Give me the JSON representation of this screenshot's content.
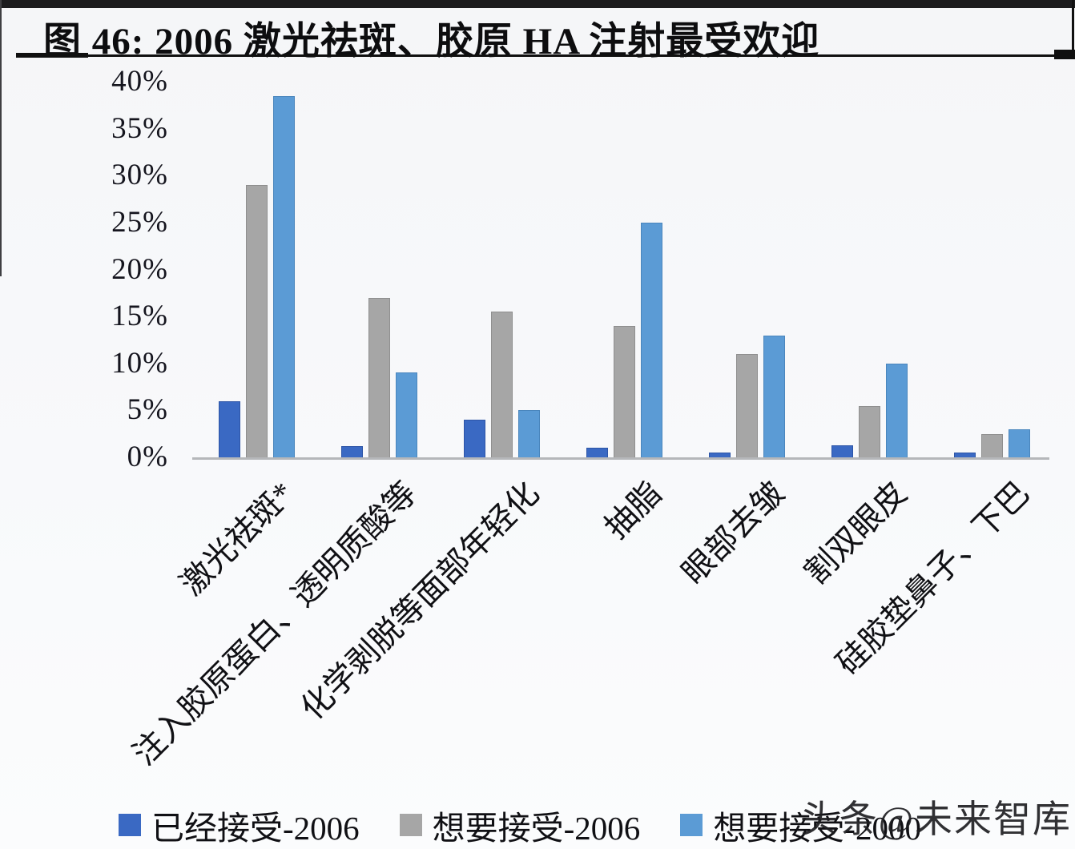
{
  "header": {
    "title": "图 46: 2006 激光祛斑、胶原 HA 注射最受欢迎"
  },
  "watermark": {
    "text": "头条@未来智库"
  },
  "colors": {
    "accepted_2006_blue": "#3a69c3",
    "want_2006_gray": "#a6a6a6",
    "want_2000_light_blue": "#5b9bd5",
    "axis_line": "#b5b7ba",
    "header_bar": "#1c1c1e"
  },
  "chart_data": {
    "type": "bar",
    "title": "图 46: 2006 激光祛斑、胶原 HA 注射最受欢迎",
    "categories": [
      "激光祛斑*",
      "注入胶原蛋白、透明质酸等",
      "化学剥脱等面部年轻化",
      "抽脂",
      "眼部去皱",
      "割双眼皮",
      "硅胶垫鼻子、下巴"
    ],
    "series": [
      {
        "name": "已经接受-2006",
        "color": "#3a69c3",
        "border": "#2d55a6",
        "values": [
          6,
          1.2,
          4,
          1,
          0.5,
          1.3,
          0.5
        ]
      },
      {
        "name": "想要接受-2006",
        "color": "#a6a6a6",
        "border": "#8f8f8f",
        "values": [
          29,
          17,
          15.5,
          14,
          11,
          5.5,
          2.5
        ]
      },
      {
        "name": "想要接受-2000",
        "color": "#5b9bd5",
        "border": "#4a86bd",
        "values": [
          38.5,
          9,
          5,
          25,
          13,
          10,
          3
        ]
      }
    ],
    "xlabel": "",
    "ylabel": "",
    "ylim": [
      0,
      40
    ],
    "ytick_step": 5,
    "ytick_labels": [
      "0%",
      "5%",
      "10%",
      "15%",
      "20%",
      "25%",
      "30%",
      "35%",
      "40%"
    ],
    "grid": false,
    "legend_position": "bottom",
    "xlabel_rotation_deg": 45
  }
}
